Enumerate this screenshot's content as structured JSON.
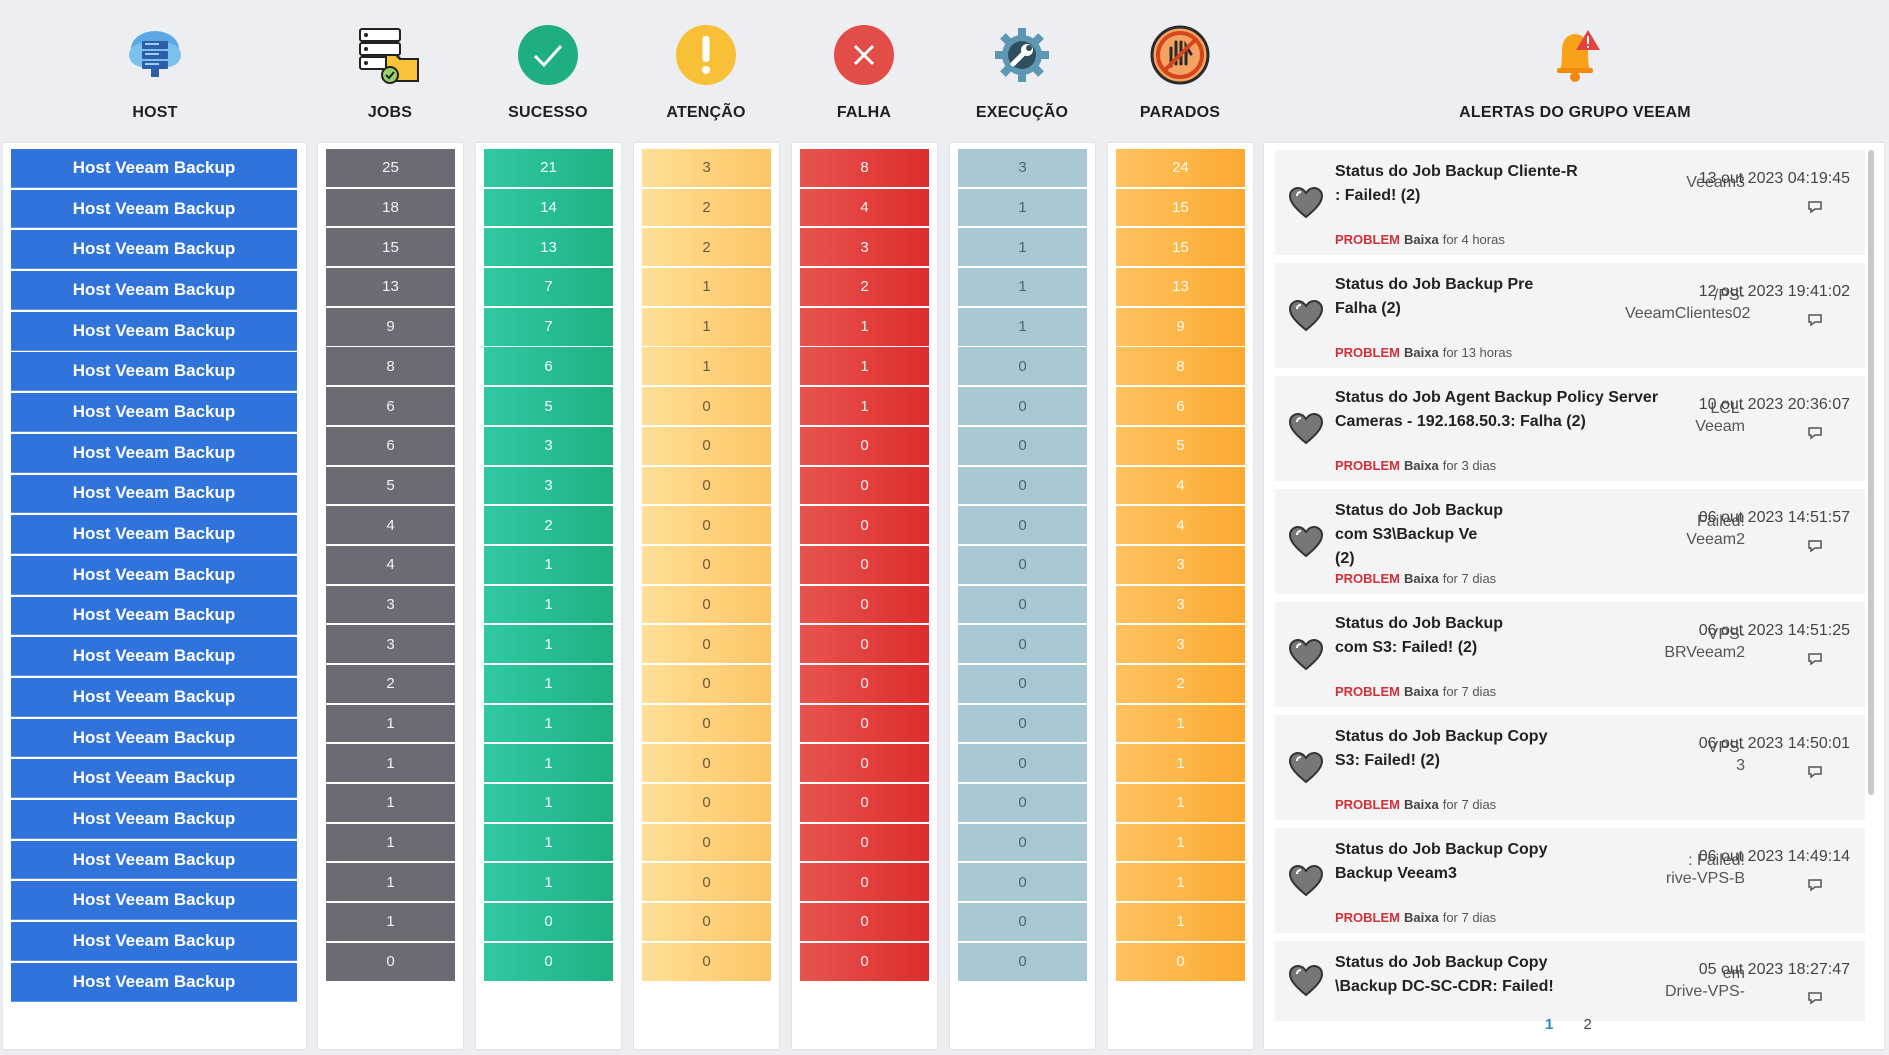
{
  "headers": {
    "host": "HOST",
    "jobs": "JOBS",
    "sucesso": "SUCESSO",
    "atencao": "ATENÇÃO",
    "falha": "FALHA",
    "execucao": "EXECUÇÃO",
    "parados": "PARADOS",
    "alertas": "ALERTAS DO GRUPO VEEAM"
  },
  "icons": {
    "host": "server-cloud-icon",
    "jobs": "jobs-folder-icon",
    "sucesso": "check-circle-icon",
    "atencao": "exclamation-circle-icon",
    "falha": "x-circle-icon",
    "execucao": "gear-wrench-icon",
    "parados": "stop-hand-icon",
    "alertas": "alert-bell-icon"
  },
  "colors": {
    "host": "#2f73db",
    "jobs": "#6b6c73",
    "sucesso": "#1fb184",
    "atencao": "#fcc565",
    "falha": "#dc2d2d",
    "execucao": "#a7c8d3",
    "parados": "#fbaa30",
    "problem": "#d1303a",
    "pager_active": "#1f8acb"
  },
  "rows": {
    "host": [
      "Host Veeam Backup",
      "Host Veeam Backup",
      "Host Veeam Backup",
      "Host Veeam Backup",
      "Host Veeam Backup",
      "Host Veeam Backup",
      "Host Veeam Backup",
      "Host Veeam Backup",
      "Host Veeam Backup",
      "Host Veeam Backup",
      "Host Veeam Backup",
      "Host Veeam Backup",
      "Host Veeam Backup",
      "Host Veeam Backup",
      "Host Veeam Backup",
      "Host Veeam Backup",
      "Host Veeam Backup",
      "Host Veeam Backup",
      "Host Veeam Backup",
      "Host Veeam Backup",
      "Host Veeam Backup"
    ],
    "jobs": [
      "25",
      "18",
      "15",
      "13",
      "9",
      "8",
      "6",
      "6",
      "5",
      "4",
      "4",
      "3",
      "3",
      "2",
      "1",
      "1",
      "1",
      "1",
      "1",
      "1",
      "0"
    ],
    "sucesso": [
      "21",
      "14",
      "13",
      "7",
      "7",
      "6",
      "5",
      "3",
      "3",
      "2",
      "1",
      "1",
      "1",
      "1",
      "1",
      "1",
      "1",
      "1",
      "1",
      "0",
      "0"
    ],
    "atencao": [
      "3",
      "2",
      "2",
      "1",
      "1",
      "1",
      "0",
      "0",
      "0",
      "0",
      "0",
      "0",
      "0",
      "0",
      "0",
      "0",
      "0",
      "0",
      "0",
      "0",
      "0"
    ],
    "falha": [
      "8",
      "4",
      "3",
      "2",
      "1",
      "1",
      "1",
      "0",
      "0",
      "0",
      "0",
      "0",
      "0",
      "0",
      "0",
      "0",
      "0",
      "0",
      "0",
      "0",
      "0"
    ],
    "execucao": [
      "3",
      "1",
      "1",
      "1",
      "1",
      "0",
      "0",
      "0",
      "0",
      "0",
      "0",
      "0",
      "0",
      "0",
      "0",
      "0",
      "0",
      "0",
      "0",
      "0",
      "0"
    ],
    "parados": [
      "24",
      "15",
      "15",
      "13",
      "9",
      "8",
      "6",
      "5",
      "4",
      "4",
      "3",
      "3",
      "3",
      "2",
      "1",
      "1",
      "1",
      "1",
      "1",
      "1",
      "0"
    ]
  },
  "alerts": [
    {
      "title": "Status do Job Backup Cliente-R\n: Failed! (2)",
      "host": "Veeam3",
      "date": "13 out 2023 04:19:45",
      "problem": "PROBLEM",
      "severity": "Baixa",
      "duration": "for 4 horas"
    },
    {
      "title": "Status do Job Backup Pre\nFalha (2)",
      "host": "/PS-\nVeeamClientes02",
      "date": "12 out 2023 19:41:02",
      "problem": "PROBLEM",
      "severity": "Baixa",
      "duration": "for 13 horas"
    },
    {
      "title": "Status do Job Agent Backup Policy Server\nCameras - 192.168.50.3: Falha (2)",
      "host": "LCL-\nVeeam",
      "date": "10 out 2023 20:36:07",
      "problem": "PROBLEM",
      "severity": "Baixa",
      "duration": "for 3 dias"
    },
    {
      "title": "Status do Job Backup\ncom S3\\Backup Ve\n(2)",
      "host": "Failed!\nVeeam2",
      "date": "06 out 2023 14:51:57",
      "problem": "PROBLEM",
      "severity": "Baixa",
      "duration": "for 7 dias"
    },
    {
      "title": "Status do Job Backup\ncom S3: Failed! (2)",
      "host": "VPS-\nBRVeeam2",
      "date": "06 out 2023 14:51:25",
      "problem": "PROBLEM",
      "severity": "Baixa",
      "duration": "for 7 dias"
    },
    {
      "title": "Status do Job Backup Copy\nS3: Failed! (2)",
      "host": "VPS-\n3",
      "date": "06 out 2023 14:50:01",
      "problem": "PROBLEM",
      "severity": "Baixa",
      "duration": "for 7 dias"
    },
    {
      "title": "Status do Job Backup Copy\nBackup Veeam3",
      "host": ": Failed!\nrive-VPS-B",
      "date": "06 out 2023 14:49:14",
      "problem": "PROBLEM",
      "severity": "Baixa",
      "duration": "for 7 dias"
    },
    {
      "title": "Status do Job Backup Copy\n\\Backup DC-SC-CDR: Failed!",
      "host": "em\nDrive-VPS-",
      "date": "05 out 2023 18:27:47",
      "problem": "",
      "severity": "",
      "duration": ""
    }
  ],
  "pager": {
    "page1": "1",
    "page2": "2"
  }
}
